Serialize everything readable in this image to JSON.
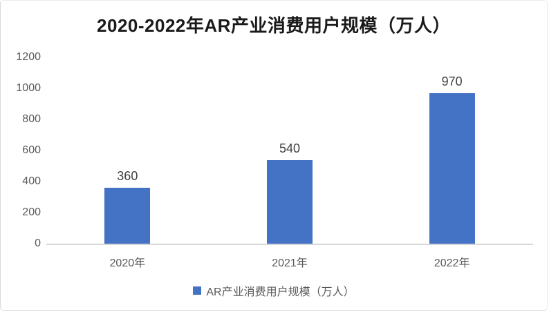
{
  "chart_data": {
    "type": "bar",
    "title": "2020-2022年AR产业消费用户规模（万人）",
    "categories": [
      "2020年",
      "2021年",
      "2022年"
    ],
    "values": [
      360,
      540,
      970
    ],
    "data_labels": [
      "360",
      "540",
      "970"
    ],
    "yticks": [
      0,
      200,
      400,
      600,
      800,
      1000,
      1200
    ],
    "ylim": [
      0,
      1200
    ],
    "xlabel": "",
    "ylabel": "",
    "grid": false,
    "legend": "AR产业消费用户规模（万人）",
    "legend_position": "bottom",
    "colors": {
      "bar": "#4472C4",
      "axis_line": "#d6d6d6",
      "tick_text": "#595959",
      "data_label_text": "#404040",
      "title_text": "#1a1a1a"
    }
  }
}
